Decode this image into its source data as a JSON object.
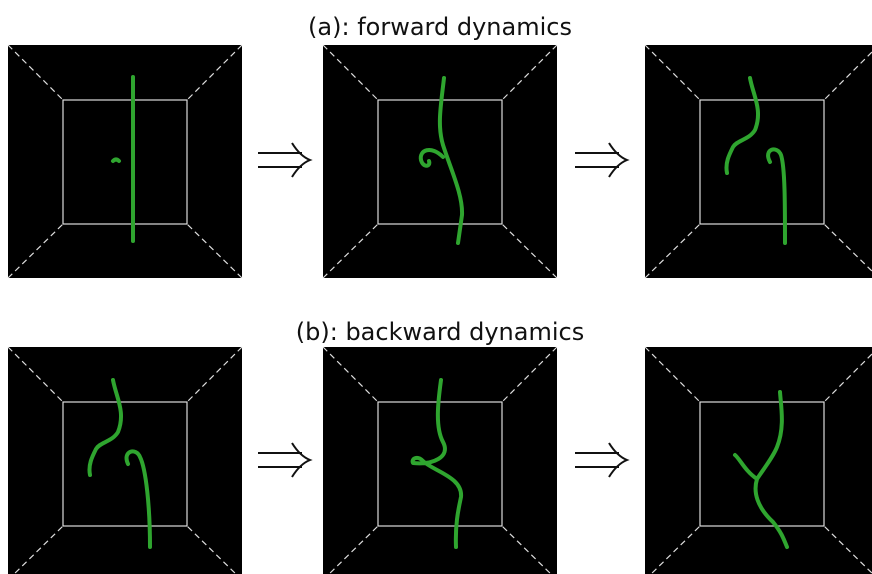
{
  "figure": {
    "rows": [
      {
        "caption": "(a): forward dynamics"
      },
      {
        "caption": "(b): backward dynamics"
      }
    ]
  }
}
